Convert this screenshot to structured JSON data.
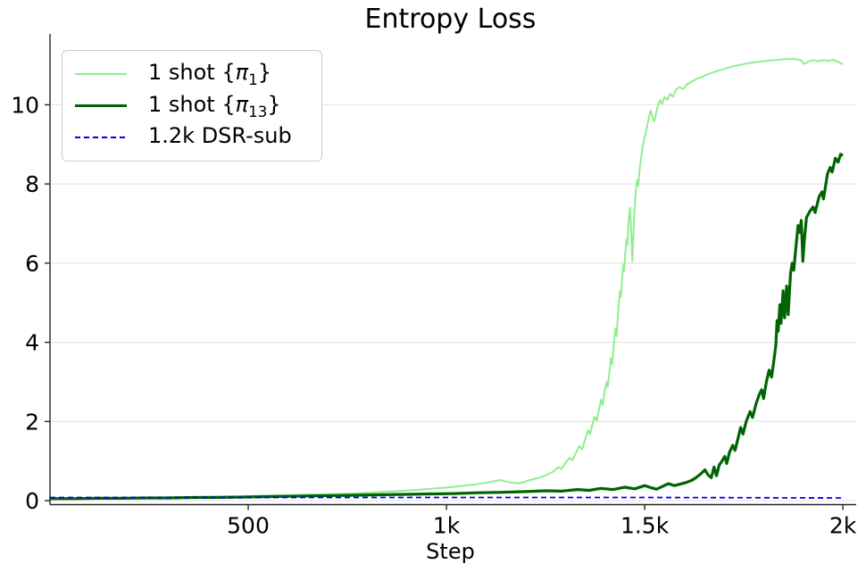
{
  "title": "Entropy Loss",
  "colors": {
    "background": "#ffffff",
    "grid": "#e6e6e6",
    "spine": "#262626",
    "tick_text": "#000000",
    "series_light_green": "#90ee90",
    "series_dark_green": "#006400",
    "series_blue": "#0000ee"
  },
  "legend": {
    "items": [
      {
        "pre": "1 shot {",
        "pi": "π",
        "sub": "1",
        "post": "}",
        "color": "#90ee90",
        "style": "solid",
        "line_width": 2
      },
      {
        "pre": "1 shot {",
        "pi": "π",
        "sub": "13",
        "post": "}",
        "color": "#006400",
        "style": "solid",
        "line_width": 3.2
      },
      {
        "pre": "1.2k DSR-sub",
        "pi": "",
        "sub": "",
        "post": "",
        "color": "#0000ee",
        "style": "dashed",
        "line_width": 1.8
      }
    ]
  },
  "chart_data": {
    "type": "line",
    "title": "Entropy Loss",
    "xlabel": "Step",
    "ylabel": "",
    "grid": "horizontal",
    "legend_position": "upper-left",
    "xlim": [
      0,
      2020
    ],
    "ylim": [
      -0.1,
      11.7
    ],
    "x_ticks": [
      {
        "value": 500,
        "label": "500"
      },
      {
        "value": 1000,
        "label": "1k"
      },
      {
        "value": 1500,
        "label": "1.5k"
      },
      {
        "value": 2000,
        "label": "2k"
      }
    ],
    "y_ticks": [
      0,
      2,
      4,
      6,
      8,
      10
    ],
    "series": [
      {
        "name": "1 shot {π₁}",
        "color": "#90ee90",
        "style": "solid",
        "line_width": 2,
        "points": [
          [
            0,
            0.05
          ],
          [
            40,
            0.06
          ],
          [
            80,
            0.05
          ],
          [
            120,
            0.06
          ],
          [
            160,
            0.07
          ],
          [
            200,
            0.07
          ],
          [
            240,
            0.08
          ],
          [
            280,
            0.08
          ],
          [
            320,
            0.09
          ],
          [
            360,
            0.09
          ],
          [
            400,
            0.1
          ],
          [
            440,
            0.11
          ],
          [
            480,
            0.11
          ],
          [
            520,
            0.12
          ],
          [
            560,
            0.13
          ],
          [
            600,
            0.14
          ],
          [
            640,
            0.15
          ],
          [
            680,
            0.16
          ],
          [
            720,
            0.17
          ],
          [
            760,
            0.18
          ],
          [
            800,
            0.2
          ],
          [
            840,
            0.22
          ],
          [
            880,
            0.24
          ],
          [
            920,
            0.27
          ],
          [
            960,
            0.3
          ],
          [
            1000,
            0.33
          ],
          [
            1040,
            0.37
          ],
          [
            1080,
            0.42
          ],
          [
            1110,
            0.47
          ],
          [
            1135,
            0.52
          ],
          [
            1160,
            0.46
          ],
          [
            1185,
            0.44
          ],
          [
            1210,
            0.52
          ],
          [
            1235,
            0.58
          ],
          [
            1255,
            0.66
          ],
          [
            1270,
            0.74
          ],
          [
            1282,
            0.85
          ],
          [
            1290,
            0.8
          ],
          [
            1300,
            0.95
          ],
          [
            1310,
            1.08
          ],
          [
            1318,
            1.02
          ],
          [
            1327,
            1.22
          ],
          [
            1335,
            1.38
          ],
          [
            1342,
            1.3
          ],
          [
            1350,
            1.55
          ],
          [
            1357,
            1.78
          ],
          [
            1362,
            1.68
          ],
          [
            1368,
            1.92
          ],
          [
            1374,
            2.12
          ],
          [
            1379,
            2.02
          ],
          [
            1385,
            2.3
          ],
          [
            1390,
            2.55
          ],
          [
            1394,
            2.42
          ],
          [
            1399,
            2.75
          ],
          [
            1404,
            3.0
          ],
          [
            1407,
            2.88
          ],
          [
            1411,
            3.25
          ],
          [
            1415,
            3.6
          ],
          [
            1418,
            3.45
          ],
          [
            1422,
            3.95
          ],
          [
            1426,
            4.35
          ],
          [
            1429,
            4.15
          ],
          [
            1432,
            4.6
          ],
          [
            1435,
            5.0
          ],
          [
            1438,
            5.3
          ],
          [
            1440,
            5.15
          ],
          [
            1443,
            5.6
          ],
          [
            1446,
            5.95
          ],
          [
            1448,
            5.8
          ],
          [
            1451,
            6.25
          ],
          [
            1454,
            6.6
          ],
          [
            1456,
            6.45
          ],
          [
            1459,
            6.95
          ],
          [
            1461,
            7.25
          ],
          [
            1463,
            7.4
          ],
          [
            1465,
            7.05
          ],
          [
            1467,
            6.55
          ],
          [
            1469,
            6.05
          ],
          [
            1472,
            6.85
          ],
          [
            1475,
            7.45
          ],
          [
            1478,
            7.85
          ],
          [
            1481,
            8.1
          ],
          [
            1484,
            7.95
          ],
          [
            1487,
            8.35
          ],
          [
            1491,
            8.65
          ],
          [
            1495,
            8.95
          ],
          [
            1499,
            9.15
          ],
          [
            1503,
            9.3
          ],
          [
            1507,
            9.5
          ],
          [
            1511,
            9.7
          ],
          [
            1515,
            9.85
          ],
          [
            1519,
            9.72
          ],
          [
            1524,
            9.58
          ],
          [
            1529,
            9.8
          ],
          [
            1534,
            10.0
          ],
          [
            1539,
            10.12
          ],
          [
            1544,
            10.02
          ],
          [
            1550,
            10.2
          ],
          [
            1557,
            10.12
          ],
          [
            1564,
            10.28
          ],
          [
            1571,
            10.2
          ],
          [
            1579,
            10.38
          ],
          [
            1588,
            10.45
          ],
          [
            1597,
            10.4
          ],
          [
            1607,
            10.52
          ],
          [
            1618,
            10.58
          ],
          [
            1630,
            10.65
          ],
          [
            1643,
            10.7
          ],
          [
            1657,
            10.76
          ],
          [
            1672,
            10.82
          ],
          [
            1688,
            10.87
          ],
          [
            1705,
            10.92
          ],
          [
            1723,
            10.97
          ],
          [
            1742,
            11.01
          ],
          [
            1762,
            11.05
          ],
          [
            1783,
            11.08
          ],
          [
            1805,
            11.11
          ],
          [
            1828,
            11.13
          ],
          [
            1852,
            11.15
          ],
          [
            1877,
            11.16
          ],
          [
            1893,
            11.13
          ],
          [
            1903,
            11.03
          ],
          [
            1913,
            11.09
          ],
          [
            1925,
            11.13
          ],
          [
            1938,
            11.1
          ],
          [
            1951,
            11.13
          ],
          [
            1964,
            11.11
          ],
          [
            1977,
            11.13
          ],
          [
            1989,
            11.08
          ],
          [
            2000,
            11.02
          ]
        ]
      },
      {
        "name": "1 shot {π₁₃}",
        "color": "#006400",
        "style": "solid",
        "line_width": 3.2,
        "points": [
          [
            0,
            0.05
          ],
          [
            60,
            0.05
          ],
          [
            120,
            0.06
          ],
          [
            180,
            0.06
          ],
          [
            240,
            0.07
          ],
          [
            300,
            0.07
          ],
          [
            360,
            0.08
          ],
          [
            420,
            0.08
          ],
          [
            480,
            0.09
          ],
          [
            540,
            0.1
          ],
          [
            600,
            0.11
          ],
          [
            660,
            0.12
          ],
          [
            720,
            0.13
          ],
          [
            780,
            0.14
          ],
          [
            840,
            0.15
          ],
          [
            900,
            0.16
          ],
          [
            960,
            0.17
          ],
          [
            1020,
            0.18
          ],
          [
            1080,
            0.2
          ],
          [
            1140,
            0.21
          ],
          [
            1200,
            0.23
          ],
          [
            1250,
            0.25
          ],
          [
            1290,
            0.24
          ],
          [
            1330,
            0.28
          ],
          [
            1360,
            0.26
          ],
          [
            1390,
            0.31
          ],
          [
            1420,
            0.28
          ],
          [
            1450,
            0.34
          ],
          [
            1475,
            0.3
          ],
          [
            1500,
            0.38
          ],
          [
            1515,
            0.33
          ],
          [
            1530,
            0.29
          ],
          [
            1545,
            0.36
          ],
          [
            1560,
            0.43
          ],
          [
            1575,
            0.38
          ],
          [
            1590,
            0.42
          ],
          [
            1605,
            0.46
          ],
          [
            1620,
            0.52
          ],
          [
            1632,
            0.6
          ],
          [
            1642,
            0.68
          ],
          [
            1652,
            0.78
          ],
          [
            1660,
            0.65
          ],
          [
            1668,
            0.58
          ],
          [
            1675,
            0.85
          ],
          [
            1681,
            0.63
          ],
          [
            1688,
            0.9
          ],
          [
            1695,
            1.0
          ],
          [
            1702,
            1.12
          ],
          [
            1707,
            0.94
          ],
          [
            1714,
            1.22
          ],
          [
            1722,
            1.4
          ],
          [
            1728,
            1.27
          ],
          [
            1735,
            1.55
          ],
          [
            1742,
            1.85
          ],
          [
            1748,
            1.68
          ],
          [
            1756,
            2.0
          ],
          [
            1766,
            2.25
          ],
          [
            1772,
            2.1
          ],
          [
            1781,
            2.45
          ],
          [
            1789,
            2.68
          ],
          [
            1795,
            2.8
          ],
          [
            1800,
            2.58
          ],
          [
            1807,
            3.0
          ],
          [
            1814,
            3.3
          ],
          [
            1820,
            3.12
          ],
          [
            1826,
            3.55
          ],
          [
            1831,
            3.95
          ],
          [
            1834,
            4.55
          ],
          [
            1837,
            4.28
          ],
          [
            1841,
            4.95
          ],
          [
            1844,
            4.48
          ],
          [
            1849,
            5.3
          ],
          [
            1853,
            4.62
          ],
          [
            1858,
            5.42
          ],
          [
            1862,
            4.7
          ],
          [
            1868,
            5.75
          ],
          [
            1872,
            6.0
          ],
          [
            1876,
            5.82
          ],
          [
            1881,
            6.35
          ],
          [
            1887,
            6.95
          ],
          [
            1891,
            6.78
          ],
          [
            1895,
            7.08
          ],
          [
            1899,
            6.05
          ],
          [
            1903,
            6.6
          ],
          [
            1908,
            7.15
          ],
          [
            1916,
            7.3
          ],
          [
            1925,
            7.42
          ],
          [
            1930,
            7.28
          ],
          [
            1940,
            7.68
          ],
          [
            1947,
            7.8
          ],
          [
            1951,
            7.62
          ],
          [
            1961,
            8.25
          ],
          [
            1968,
            8.42
          ],
          [
            1973,
            8.3
          ],
          [
            1981,
            8.65
          ],
          [
            1988,
            8.55
          ],
          [
            1994,
            8.75
          ],
          [
            2000,
            8.72
          ]
        ]
      },
      {
        "name": "1.2k DSR-sub",
        "color": "#0000ee",
        "style": "dashed",
        "line_width": 1.8,
        "points": [
          [
            0,
            0.08
          ],
          [
            500,
            0.08
          ],
          [
            1000,
            0.08
          ],
          [
            1500,
            0.08
          ],
          [
            2000,
            0.07
          ]
        ]
      }
    ]
  }
}
